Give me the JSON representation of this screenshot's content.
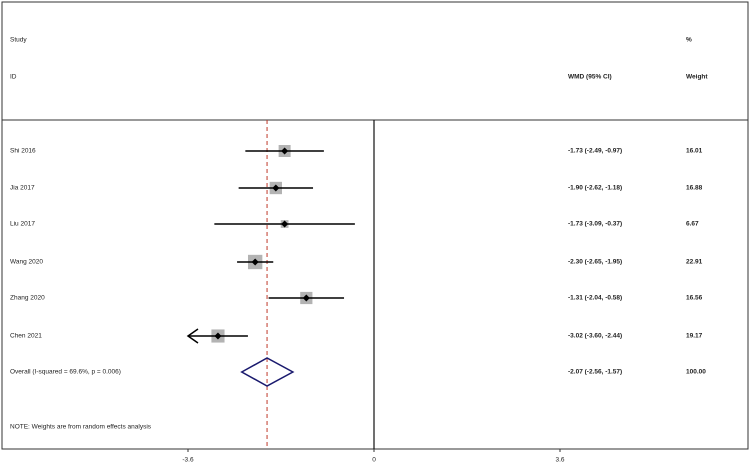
{
  "chart_data": {
    "type": "forest",
    "headers": {
      "study": "Study",
      "id": "ID",
      "pct": "%",
      "effect": "WMD (95% CI)",
      "weight": "Weight"
    },
    "categories": [
      "Shi 2016",
      "Jia 2017",
      "Liu 2017",
      "Wang 2020",
      "Zhang 2020",
      "Chen 2021"
    ],
    "values": [
      -1.73,
      -1.9,
      -1.73,
      -2.3,
      -1.31,
      -3.02
    ],
    "lower": [
      -2.49,
      -2.62,
      -3.09,
      -2.65,
      -2.04,
      -3.6
    ],
    "upper": [
      -0.97,
      -1.18,
      -0.37,
      -1.95,
      -0.58,
      -2.44
    ],
    "value_labels": [
      "-1.73 (-2.49, -0.97)",
      "-1.90 (-2.62, -1.18)",
      "-1.73 (-3.09, -0.37)",
      "-2.30 (-2.65, -1.95)",
      "-1.31 (-2.04, -0.58)",
      "-3.02 (-3.60, -2.44)"
    ],
    "weights": [
      16.01,
      16.88,
      6.67,
      22.91,
      16.56,
      19.17
    ],
    "weight_labels": [
      "16.01",
      "16.88",
      "6.67",
      "22.91",
      "16.56",
      "19.17"
    ],
    "overall": {
      "label": "Overall  (I-squared = 69.6%, p = 0.006)",
      "value": -2.07,
      "lower": -2.56,
      "upper": -1.57,
      "value_label": "-2.07 (-2.56, -1.57)",
      "weight": 100,
      "weight_label": "100.00"
    },
    "note": "NOTE: Weights are from random effects analysis",
    "xlim": [
      -3.6,
      3.6
    ],
    "xticks": [
      {
        "value": -3.6,
        "label": "-3.6"
      },
      0,
      3.6
    ],
    "box_color": "#b3b3b3",
    "diamond_color": "#1a1a6e",
    "reference_color": "#c0392b"
  }
}
